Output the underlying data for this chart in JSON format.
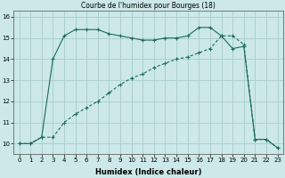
{
  "title": "Courbe de l'humidex pour Bourges (18)",
  "xlabel": "Humidex (Indice chaleur)",
  "bg_color": "#cce8e8",
  "grid_color": "#aacccc",
  "line_color": "#1a6b5a",
  "x": [
    0,
    1,
    2,
    3,
    4,
    5,
    6,
    7,
    8,
    9,
    10,
    11,
    12,
    13,
    14,
    15,
    16,
    17,
    18,
    19,
    20,
    21,
    22,
    23
  ],
  "line1": [
    10.0,
    10.0,
    10.3,
    14.0,
    15.1,
    15.4,
    15.4,
    15.4,
    15.2,
    15.1,
    15.0,
    14.9,
    14.9,
    15.0,
    15.0,
    15.1,
    15.5,
    15.5,
    15.1,
    14.5,
    14.6,
    10.2,
    10.2,
    9.8
  ],
  "line2": [
    10.0,
    10.0,
    10.3,
    10.3,
    11.0,
    11.4,
    11.7,
    12.0,
    12.4,
    12.8,
    13.1,
    13.3,
    13.6,
    13.8,
    14.0,
    14.1,
    14.3,
    14.5,
    15.1,
    15.1,
    14.7,
    10.2,
    10.2,
    9.8
  ],
  "ylim": [
    9.5,
    16.3
  ],
  "yticks": [
    10,
    11,
    12,
    13,
    14,
    15,
    16
  ],
  "xlim": [
    -0.5,
    23.5
  ],
  "title_fontsize": 5.5,
  "xlabel_fontsize": 6,
  "tick_fontsize": 5
}
